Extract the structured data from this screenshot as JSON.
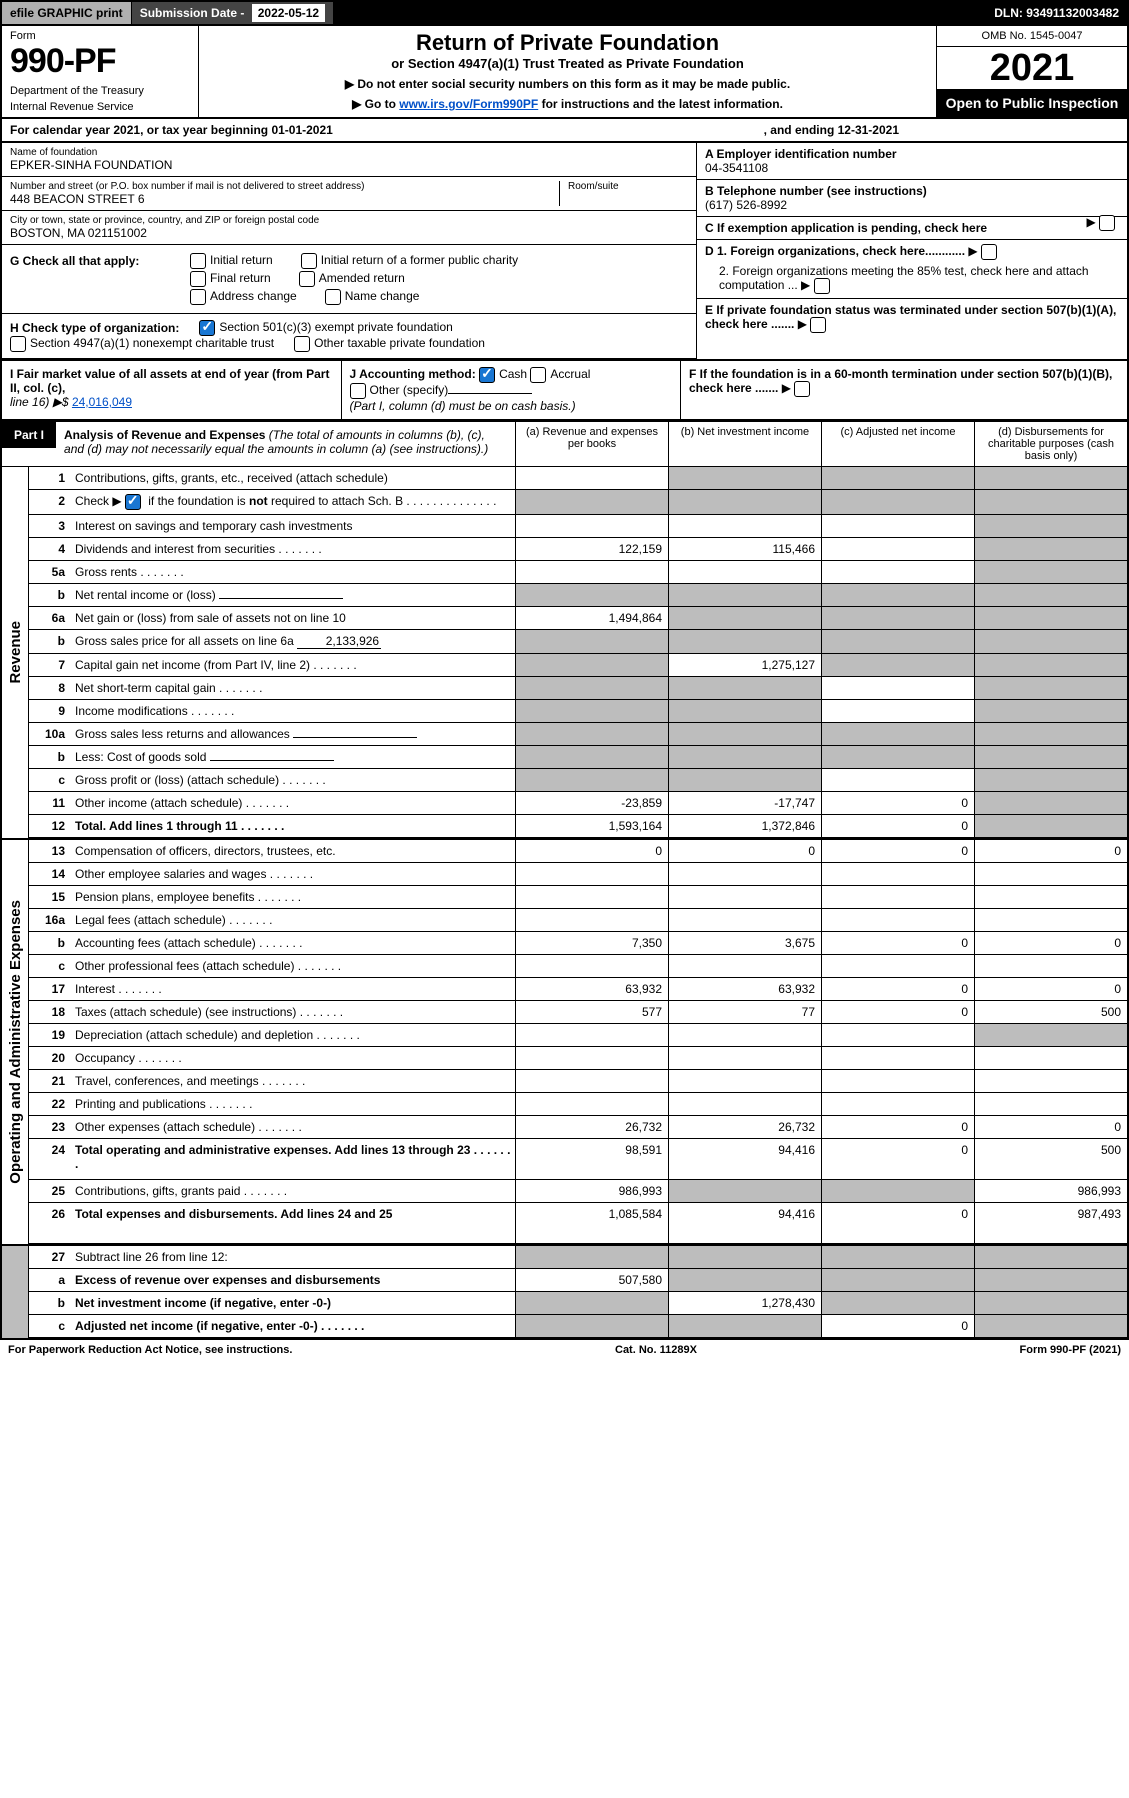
{
  "top": {
    "efile": "efile GRAPHIC print",
    "subdate_label": "Submission Date - ",
    "subdate": "2022-05-12",
    "dln": "DLN: 93491132003482"
  },
  "header": {
    "form_label": "Form",
    "form_number": "990-PF",
    "dept1": "Department of the Treasury",
    "dept2": "Internal Revenue Service",
    "title": "Return of Private Foundation",
    "subtitle": "or Section 4947(a)(1) Trust Treated as Private Foundation",
    "note1": "▶ Do not enter social security numbers on this form as it may be made public.",
    "note2_pre": "▶ Go to ",
    "note2_link": "www.irs.gov/Form990PF",
    "note2_post": " for instructions and the latest information.",
    "omb": "OMB No. 1545-0047",
    "year": "2021",
    "open": "Open to Public Inspection"
  },
  "period": {
    "label": "For calendar year 2021, or tax year beginning 01-01-2021",
    "ending": ", and ending 12-31-2021"
  },
  "ident": {
    "name_label": "Name of foundation",
    "name": "EPKER-SINHA FOUNDATION",
    "addr_label": "Number and street (or P.O. box number if mail is not delivered to street address)",
    "addr": "448 BEACON STREET 6",
    "room_label": "Room/suite",
    "city_label": "City or town, state or province, country, and ZIP or foreign postal code",
    "city": "BOSTON, MA  021151002",
    "a_label": "A Employer identification number",
    "a_val": "04-3541108",
    "b_label": "B Telephone number (see instructions)",
    "b_val": "(617) 526-8992",
    "c_label": "C If exemption application is pending, check here",
    "d1": "D 1. Foreign organizations, check here............",
    "d2": "2. Foreign organizations meeting the 85% test, check here and attach computation ...",
    "e": "E  If private foundation status was terminated under section 507(b)(1)(A), check here .......",
    "f": "F  If the foundation is in a 60-month termination under section 507(b)(1)(B), check here .......",
    "g_label": "G Check all that apply:",
    "g_opts": [
      "Initial return",
      "Final return",
      "Address change",
      "Initial return of a former public charity",
      "Amended return",
      "Name change"
    ],
    "h_label": "H Check type of organization:",
    "h_opts": [
      "Section 501(c)(3) exempt private foundation",
      "Section 4947(a)(1) nonexempt charitable trust",
      "Other taxable private foundation"
    ],
    "i_label": "I Fair market value of all assets at end of year (from Part II, col. (c),",
    "i_line": "line 16) ▶$ ",
    "i_val": "24,016,049",
    "j_label": "J Accounting method:",
    "j_cash": "Cash",
    "j_accrual": "Accrual",
    "j_other": "Other (specify)",
    "j_note": "(Part I, column (d) must be on cash basis.)"
  },
  "part1": {
    "label": "Part I",
    "title": "Analysis of Revenue and Expenses",
    "subtitle": " (The total of amounts in columns (b), (c), and (d) may not necessarily equal the amounts in column (a) (see instructions).)",
    "cols": {
      "a": "(a) Revenue and expenses per books",
      "b": "(b) Net investment income",
      "c": "(c) Adjusted net income",
      "d": "(d) Disbursements for charitable purposes (cash basis only)"
    }
  },
  "rows_revenue_label": "Revenue",
  "rows_opex_label": "Operating and Administrative Expenses",
  "rows": [
    {
      "n": "1",
      "t": "Contributions, gifts, grants, etc., received (attach schedule)",
      "a": "",
      "b": "",
      "c": "",
      "d": "",
      "d_grey": true,
      "b_grey": true,
      "c_grey": true
    },
    {
      "n": "2",
      "t": "Check ▶ ☑ if the foundation is not required to attach Sch. B",
      "a": "",
      "b": "",
      "c": "",
      "d": "",
      "all_grey": true,
      "checked": true,
      "dots": true
    },
    {
      "n": "3",
      "t": "Interest on savings and temporary cash investments",
      "a": "",
      "b": "",
      "c": "",
      "d": "",
      "d_grey": true
    },
    {
      "n": "4",
      "t": "Dividends and interest from securities",
      "a": "122,159",
      "b": "115,466",
      "c": "",
      "d": "",
      "d_grey": true,
      "dots": true
    },
    {
      "n": "5a",
      "t": "Gross rents",
      "a": "",
      "b": "",
      "c": "",
      "d": "",
      "d_grey": true,
      "dots": true
    },
    {
      "n": "b",
      "t": "Net rental income or (loss)",
      "a": "",
      "b": "",
      "c": "",
      "d": "",
      "all_grey": true,
      "inline": true
    },
    {
      "n": "6a",
      "t": "Net gain or (loss) from sale of assets not on line 10",
      "a": "1,494,864",
      "b": "",
      "c": "",
      "d": "",
      "bcd_grey": true
    },
    {
      "n": "b",
      "t": "Gross sales price for all assets on line 6a",
      "a": "",
      "b": "",
      "c": "",
      "d": "",
      "all_grey": true,
      "inline_val": "2,133,926"
    },
    {
      "n": "7",
      "t": "Capital gain net income (from Part IV, line 2)",
      "a": "",
      "b": "1,275,127",
      "c": "",
      "d": "",
      "a_grey": true,
      "cd_grey": true,
      "dots": true
    },
    {
      "n": "8",
      "t": "Net short-term capital gain",
      "a": "",
      "b": "",
      "c": "",
      "d": "",
      "ab_grey": true,
      "d_grey": true,
      "dots": true
    },
    {
      "n": "9",
      "t": "Income modifications",
      "a": "",
      "b": "",
      "c": "",
      "d": "",
      "ab_grey": true,
      "d_grey": true,
      "dots": true
    },
    {
      "n": "10a",
      "t": "Gross sales less returns and allowances",
      "a": "",
      "b": "",
      "c": "",
      "d": "",
      "all_grey": true,
      "inline": true
    },
    {
      "n": "b",
      "t": "Less: Cost of goods sold",
      "a": "",
      "b": "",
      "c": "",
      "d": "",
      "all_grey": true,
      "inline": true,
      "dots": true
    },
    {
      "n": "c",
      "t": "Gross profit or (loss) (attach schedule)",
      "a": "",
      "b": "",
      "c": "",
      "d": "",
      "ab_grey": true,
      "d_grey": true,
      "dots": true
    },
    {
      "n": "11",
      "t": "Other income (attach schedule)",
      "a": "-23,859",
      "b": "-17,747",
      "c": "0",
      "d": "",
      "d_grey": true,
      "dots": true
    },
    {
      "n": "12",
      "t": "Total. Add lines 1 through 11",
      "a": "1,593,164",
      "b": "1,372,846",
      "c": "0",
      "d": "",
      "d_grey": true,
      "bold": true,
      "dots": true
    }
  ],
  "rows_opex": [
    {
      "n": "13",
      "t": "Compensation of officers, directors, trustees, etc.",
      "a": "0",
      "b": "0",
      "c": "0",
      "d": "0"
    },
    {
      "n": "14",
      "t": "Other employee salaries and wages",
      "a": "",
      "b": "",
      "c": "",
      "d": "",
      "dots": true
    },
    {
      "n": "15",
      "t": "Pension plans, employee benefits",
      "a": "",
      "b": "",
      "c": "",
      "d": "",
      "dots": true
    },
    {
      "n": "16a",
      "t": "Legal fees (attach schedule)",
      "a": "",
      "b": "",
      "c": "",
      "d": "",
      "dots": true
    },
    {
      "n": "b",
      "t": "Accounting fees (attach schedule)",
      "a": "7,350",
      "b": "3,675",
      "c": "0",
      "d": "0",
      "dots": true
    },
    {
      "n": "c",
      "t": "Other professional fees (attach schedule)",
      "a": "",
      "b": "",
      "c": "",
      "d": "",
      "dots": true
    },
    {
      "n": "17",
      "t": "Interest",
      "a": "63,932",
      "b": "63,932",
      "c": "0",
      "d": "0",
      "dots": true
    },
    {
      "n": "18",
      "t": "Taxes (attach schedule) (see instructions)",
      "a": "577",
      "b": "77",
      "c": "0",
      "d": "500",
      "dots": true
    },
    {
      "n": "19",
      "t": "Depreciation (attach schedule) and depletion",
      "a": "",
      "b": "",
      "c": "",
      "d": "",
      "d_grey": true,
      "dots": true
    },
    {
      "n": "20",
      "t": "Occupancy",
      "a": "",
      "b": "",
      "c": "",
      "d": "",
      "dots": true
    },
    {
      "n": "21",
      "t": "Travel, conferences, and meetings",
      "a": "",
      "b": "",
      "c": "",
      "d": "",
      "dots": true
    },
    {
      "n": "22",
      "t": "Printing and publications",
      "a": "",
      "b": "",
      "c": "",
      "d": "",
      "dots": true
    },
    {
      "n": "23",
      "t": "Other expenses (attach schedule)",
      "a": "26,732",
      "b": "26,732",
      "c": "0",
      "d": "0",
      "dots": true
    },
    {
      "n": "24",
      "t": "Total operating and administrative expenses. Add lines 13 through 23",
      "a": "98,591",
      "b": "94,416",
      "c": "0",
      "d": "500",
      "bold": true,
      "dots": true,
      "tall": true
    },
    {
      "n": "25",
      "t": "Contributions, gifts, grants paid",
      "a": "986,993",
      "b": "",
      "c": "",
      "d": "986,993",
      "bc_grey": true,
      "dots": true
    },
    {
      "n": "26",
      "t": "Total expenses and disbursements. Add lines 24 and 25",
      "a": "1,085,584",
      "b": "94,416",
      "c": "0",
      "d": "987,493",
      "bold": true,
      "tall": true
    }
  ],
  "rows_bottom": [
    {
      "n": "27",
      "t": "Subtract line 26 from line 12:",
      "a": "",
      "b": "",
      "c": "",
      "d": "",
      "all_grey": true
    },
    {
      "n": "a",
      "t": "Excess of revenue over expenses and disbursements",
      "a": "507,580",
      "b": "",
      "c": "",
      "d": "",
      "bcd_grey": true,
      "bold": true
    },
    {
      "n": "b",
      "t": "Net investment income (if negative, enter -0-)",
      "a": "",
      "b": "1,278,430",
      "c": "",
      "d": "",
      "a_grey": true,
      "cd_grey": true,
      "bold": true
    },
    {
      "n": "c",
      "t": "Adjusted net income (if negative, enter -0-)",
      "a": "",
      "b": "",
      "c": "0",
      "d": "",
      "ab_grey": true,
      "d_grey": true,
      "bold": true,
      "dots": true
    }
  ],
  "footer": {
    "left": "For Paperwork Reduction Act Notice, see instructions.",
    "mid": "Cat. No. 11289X",
    "right": "Form 990-PF (2021)"
  },
  "colors": {
    "link": "#0050c8",
    "grey": "#bdbdbd",
    "dgrey": "#9e9e9e",
    "black": "#000000"
  }
}
